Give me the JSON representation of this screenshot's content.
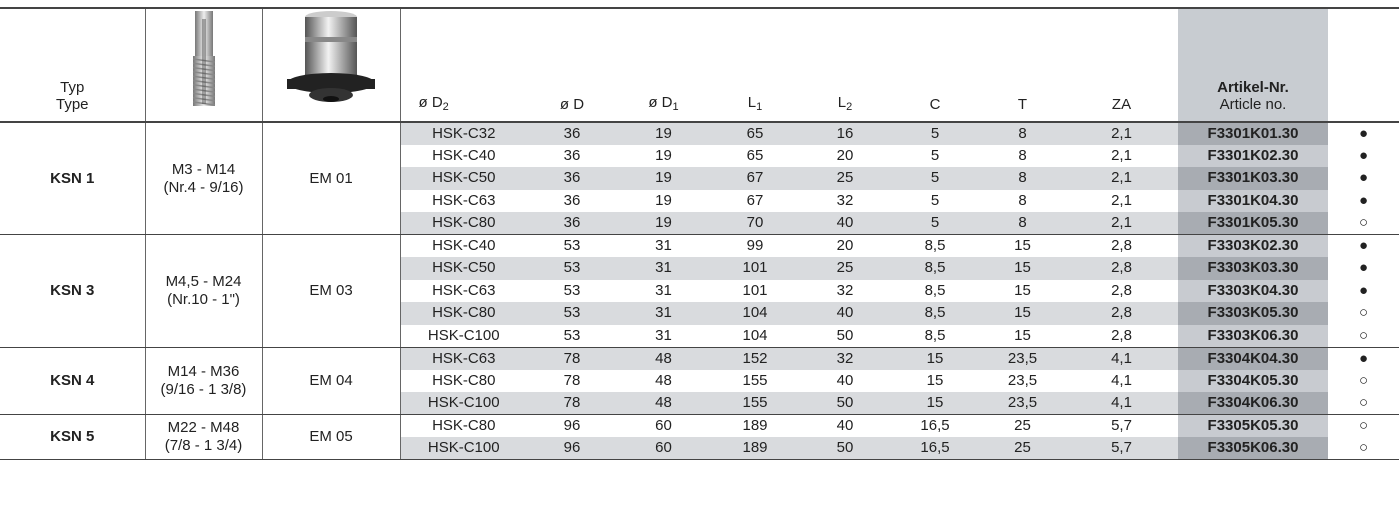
{
  "header": {
    "type": [
      "Typ",
      "Type"
    ],
    "columns": [
      {
        "text": "ø D",
        "sub": "2"
      },
      {
        "text": "ø D"
      },
      {
        "text": "ø D",
        "sub": "1"
      },
      {
        "text": "L",
        "sub": "1"
      },
      {
        "text": "L",
        "sub": "2"
      },
      {
        "text": "C"
      },
      {
        "text": "T"
      },
      {
        "text": "ZA"
      }
    ],
    "article": [
      "Artikel-Nr.",
      "Article no."
    ]
  },
  "groups": [
    {
      "type": "KSN 1",
      "thread": [
        "M3 - M14",
        "(Nr.4 - 9/16)"
      ],
      "holder": "EM 01",
      "rows": [
        [
          "HSK-C32",
          "36",
          "19",
          "65",
          "16",
          "5",
          "8",
          "2,1",
          "F3301K01.30",
          "●"
        ],
        [
          "HSK-C40",
          "36",
          "19",
          "65",
          "20",
          "5",
          "8",
          "2,1",
          "F3301K02.30",
          "●"
        ],
        [
          "HSK-C50",
          "36",
          "19",
          "67",
          "25",
          "5",
          "8",
          "2,1",
          "F3301K03.30",
          "●"
        ],
        [
          "HSK-C63",
          "36",
          "19",
          "67",
          "32",
          "5",
          "8",
          "2,1",
          "F3301K04.30",
          "●"
        ],
        [
          "HSK-C80",
          "36",
          "19",
          "70",
          "40",
          "5",
          "8",
          "2,1",
          "F3301K05.30",
          "○"
        ]
      ]
    },
    {
      "type": "KSN 3",
      "thread": [
        "M4,5 - M24",
        "(Nr.10 - 1\")"
      ],
      "holder": "EM 03",
      "rows": [
        [
          "HSK-C40",
          "53",
          "31",
          "99",
          "20",
          "8,5",
          "15",
          "2,8",
          "F3303K02.30",
          "●"
        ],
        [
          "HSK-C50",
          "53",
          "31",
          "101",
          "25",
          "8,5",
          "15",
          "2,8",
          "F3303K03.30",
          "●"
        ],
        [
          "HSK-C63",
          "53",
          "31",
          "101",
          "32",
          "8,5",
          "15",
          "2,8",
          "F3303K04.30",
          "●"
        ],
        [
          "HSK-C80",
          "53",
          "31",
          "104",
          "40",
          "8,5",
          "15",
          "2,8",
          "F3303K05.30",
          "○"
        ],
        [
          "HSK-C100",
          "53",
          "31",
          "104",
          "50",
          "8,5",
          "15",
          "2,8",
          "F3303K06.30",
          "○"
        ]
      ]
    },
    {
      "type": "KSN 4",
      "thread": [
        "M14 - M36",
        "(9/16 - 1 3/8)"
      ],
      "holder": "EM 04",
      "rows": [
        [
          "HSK-C63",
          "78",
          "48",
          "152",
          "32",
          "15",
          "23,5",
          "4,1",
          "F3304K04.30",
          "●"
        ],
        [
          "HSK-C80",
          "78",
          "48",
          "155",
          "40",
          "15",
          "23,5",
          "4,1",
          "F3304K05.30",
          "○"
        ],
        [
          "HSK-C100",
          "78",
          "48",
          "155",
          "50",
          "15",
          "23,5",
          "4,1",
          "F3304K06.30",
          "○"
        ]
      ]
    },
    {
      "type": "KSN 5",
      "thread": [
        "M22 - M48",
        "(7/8 - 1 3/4)"
      ],
      "holder": "EM 05",
      "rows": [
        [
          "HSK-C80",
          "96",
          "60",
          "189",
          "40",
          "16,5",
          "25",
          "5,7",
          "F3305K05.30",
          "○"
        ],
        [
          "HSK-C100",
          "96",
          "60",
          "189",
          "50",
          "16,5",
          "25",
          "5,7",
          "F3305K06.30",
          "○"
        ]
      ]
    }
  ]
}
